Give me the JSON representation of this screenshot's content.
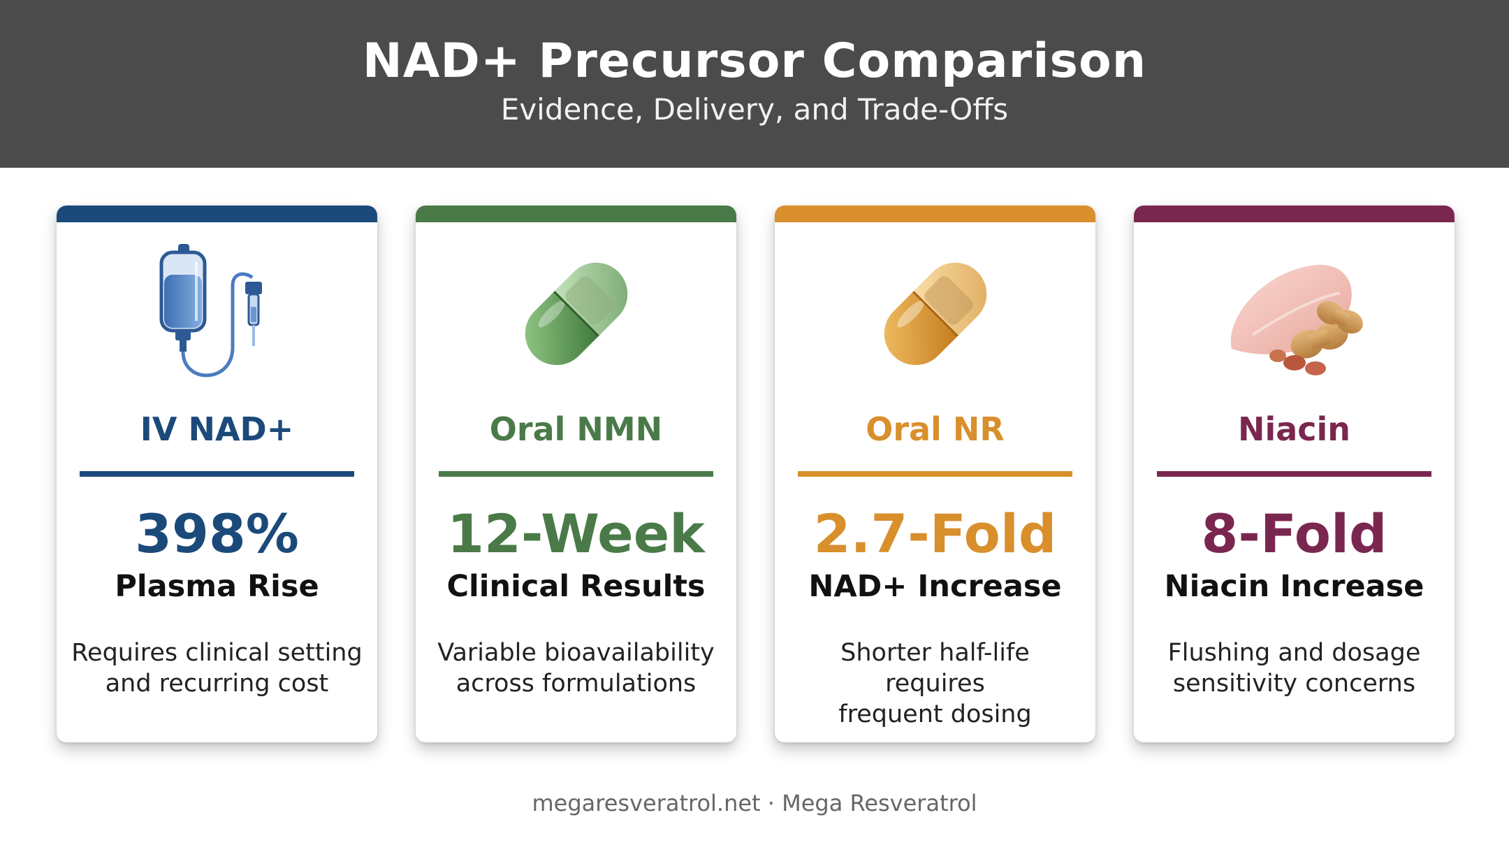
{
  "header": {
    "title": "NAD+ Precursor Comparison",
    "subtitle": "Evidence, Delivery, and Trade-Offs"
  },
  "cards": [
    {
      "name": "IV NAD+",
      "metric": "398%",
      "metric_label": "Plasma Rise",
      "note_line1": "Requires clinical setting",
      "note_line2": "and recurring cost",
      "color": "#1b4a7a",
      "icon": "iv-bag-icon"
    },
    {
      "name": "Oral NMN",
      "metric": "12-Week",
      "metric_label": "Clinical Results",
      "note_line1": "Variable bioavailability",
      "note_line2": "across formulations",
      "color": "#4a7a48",
      "icon": "green-capsule-icon"
    },
    {
      "name": "Oral NR",
      "metric": "2.7-Fold",
      "metric_label": "NAD+ Increase",
      "note_line1": "Shorter half-life requires",
      "note_line2": "frequent dosing",
      "color": "#d88f2c",
      "icon": "orange-capsule-icon"
    },
    {
      "name": "Niacin",
      "metric": "8-Fold",
      "metric_label": "Niacin Increase",
      "note_line1": "Flushing and dosage",
      "note_line2": "sensitivity concerns",
      "color": "#7a2750",
      "icon": "chicken-peanuts-icon"
    }
  ],
  "footer": {
    "text": "megaresveratrol.net · Mega Resveratrol"
  }
}
